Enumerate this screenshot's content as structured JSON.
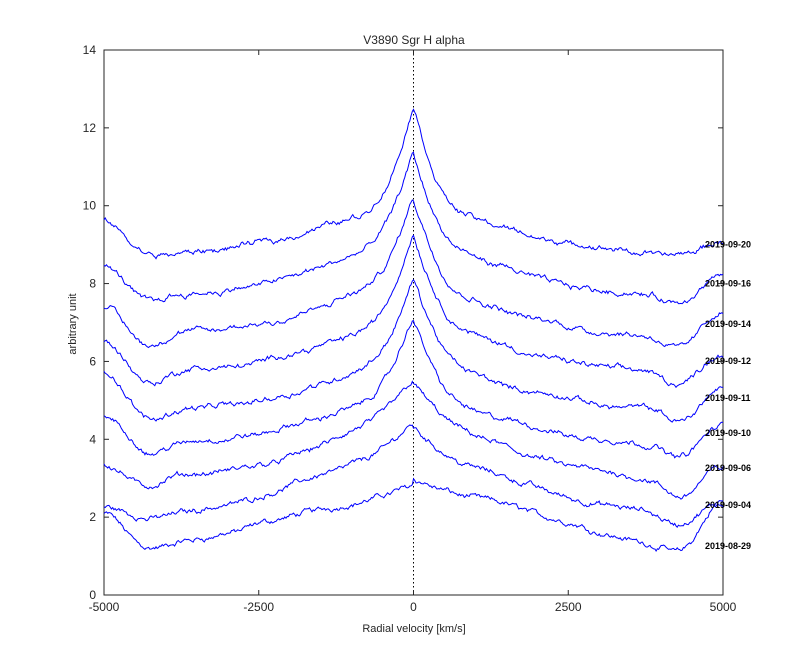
{
  "chart_data": {
    "type": "line",
    "title": "V3890 Sgr  H alpha",
    "xlabel": "Radial velocity [km/s]",
    "ylabel": "arbitrary unit",
    "xlim": [
      -5000,
      5000
    ],
    "ylim": [
      0,
      14
    ],
    "xticks": [
      -5000,
      -2500,
      0,
      2500,
      5000
    ],
    "xtick_labels": [
      "-5000",
      "-2500",
      "0",
      "2500",
      "5000"
    ],
    "yticks": [
      0,
      2,
      4,
      6,
      8,
      10,
      12,
      14
    ],
    "ytick_labels": [
      "0",
      "2",
      "4",
      "6",
      "8",
      "10",
      "12",
      "14"
    ],
    "reference_line_x": 0,
    "colors": {
      "series": "#0000ff",
      "axes": "#262626",
      "reference": "#000000"
    },
    "series": [
      {
        "name": "2019-08-29",
        "profile": {
          "offset": 1.0,
          "edge_left": 1.0,
          "edge_right": 1.3,
          "dip_left": 0.0,
          "dip_right": 0.15,
          "hump_left": 1.45,
          "hump_right": 1.6,
          "hump_width": 2600,
          "peak": 0.45,
          "peak_width": 350
        }
      },
      {
        "name": "2019-09-04",
        "profile": {
          "offset": 2.05,
          "edge_left": 0.2,
          "edge_right": 0.25,
          "dip_left": 0.15,
          "dip_right": 0.3,
          "hump_left": 1.5,
          "hump_right": 1.4,
          "hump_width": 2000,
          "peak": 0.9,
          "peak_width": 350
        }
      },
      {
        "name": "2019-09-06",
        "profile": {
          "offset": 3.0,
          "edge_left": 0.35,
          "edge_right": 0.3,
          "dip_left": 0.25,
          "dip_right": 0.55,
          "hump_left": 1.3,
          "hump_right": 1.2,
          "hump_width": 1800,
          "peak": 1.3,
          "peak_width": 380
        }
      },
      {
        "name": "2019-09-10",
        "profile": {
          "offset": 3.9,
          "edge_left": 0.7,
          "edge_right": 0.45,
          "dip_left": 0.3,
          "dip_right": 0.35,
          "hump_left": 1.05,
          "hump_right": 0.95,
          "hump_width": 1700,
          "peak": 2.2,
          "peak_width": 320
        }
      },
      {
        "name": "2019-09-11",
        "profile": {
          "offset": 4.8,
          "edge_left": 0.95,
          "edge_right": 0.55,
          "dip_left": 0.35,
          "dip_right": 0.4,
          "hump_left": 1.05,
          "hump_right": 1.0,
          "hump_width": 1700,
          "peak": 2.3,
          "peak_width": 310
        }
      },
      {
        "name": "2019-09-12",
        "profile": {
          "offset": 5.75,
          "edge_left": 0.75,
          "edge_right": 0.45,
          "dip_left": 0.35,
          "dip_right": 0.35,
          "hump_left": 1.1,
          "hump_right": 1.05,
          "hump_width": 1700,
          "peak": 2.45,
          "peak_width": 310
        }
      },
      {
        "name": "2019-09-14",
        "profile": {
          "offset": 6.7,
          "edge_left": 0.7,
          "edge_right": 0.6,
          "dip_left": 0.3,
          "dip_right": 0.35,
          "hump_left": 1.15,
          "hump_right": 1.05,
          "hump_width": 1700,
          "peak": 2.45,
          "peak_width": 300
        }
      },
      {
        "name": "2019-09-16",
        "profile": {
          "offset": 7.75,
          "edge_left": 0.7,
          "edge_right": 0.4,
          "dip_left": 0.2,
          "dip_right": 0.3,
          "hump_left": 1.1,
          "hump_right": 1.0,
          "hump_width": 1700,
          "peak": 2.55,
          "peak_width": 300
        }
      },
      {
        "name": "2019-09-20",
        "profile": {
          "offset": 8.75,
          "edge_left": 0.85,
          "edge_right": 0.3,
          "dip_left": 0.1,
          "dip_right": 0.05,
          "hump_left": 1.1,
          "hump_right": 1.05,
          "hump_width": 1800,
          "peak": 2.75,
          "peak_width": 280
        }
      }
    ]
  }
}
